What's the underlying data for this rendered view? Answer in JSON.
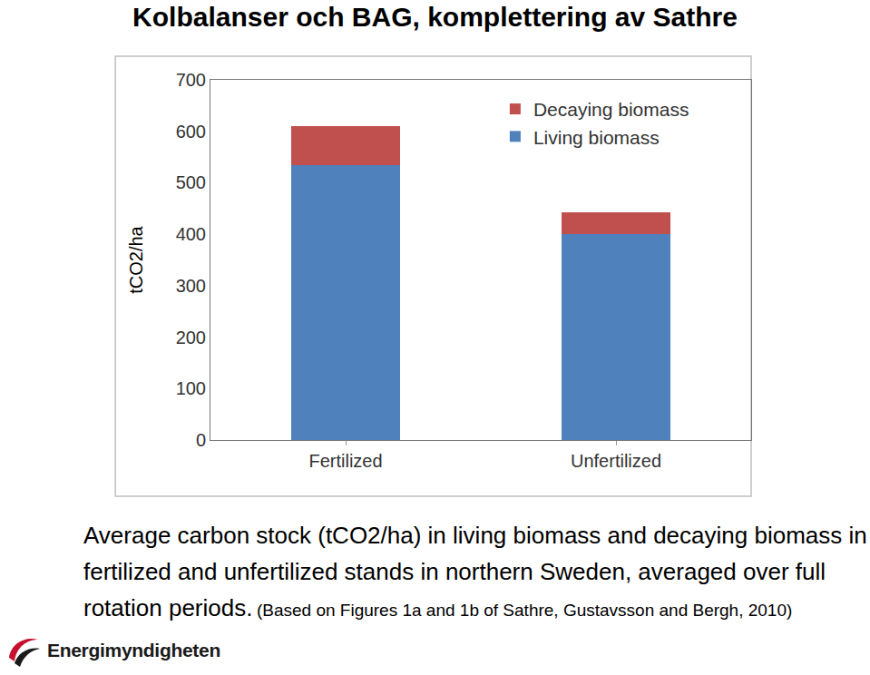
{
  "chart_data": {
    "type": "bar",
    "title": "Kolbalanser och BAG, komplettering av Sathre",
    "y_label": "tCO2/ha",
    "categories": [
      "Fertilized",
      "Unfertilized"
    ],
    "series": [
      {
        "name": "Living biomass",
        "color": "#4f81bd",
        "values": [
          535,
          400
        ]
      },
      {
        "name": "Decaying biomass",
        "color": "#c0504d",
        "values": [
          75,
          42
        ]
      }
    ],
    "stacked": true,
    "ylim": [
      0,
      700
    ],
    "yticks": [
      0,
      100,
      200,
      300,
      400,
      500,
      600,
      700
    ],
    "grid": false,
    "legend": "upper right",
    "annotations": [
      "Average carbon stock (tCO2/ha) in living biomass and decaying biomass in fertilized and unfertilized stands in northern Sweden, averaged over full rotation periods.",
      "(Based on Figures 1a and 1b of Sathre, Gustavsson and Bergh, 2010)",
      "Energimyndigheten"
    ]
  }
}
